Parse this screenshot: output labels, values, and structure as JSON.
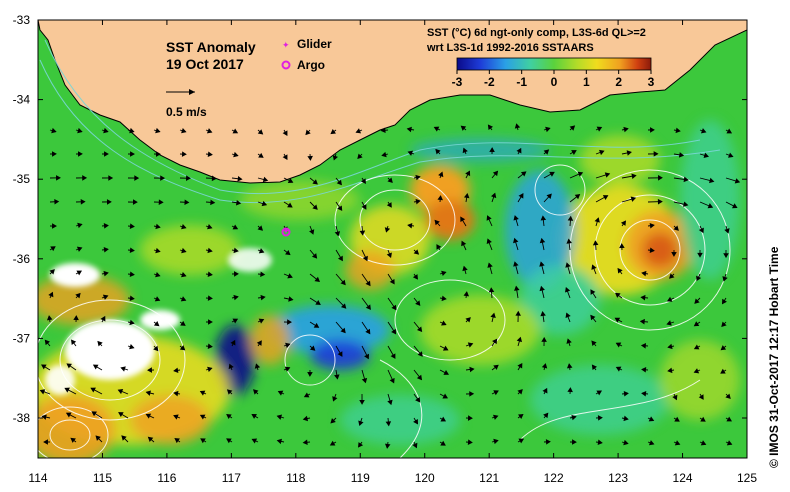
{
  "title": {
    "line1": "SST Anomaly",
    "line2": "19 Oct 2017"
  },
  "legend": {
    "glider_label": "Glider",
    "argo_label": "Argo",
    "glider_color": "#e020e0",
    "argo_color": "#e020e0"
  },
  "velocity_scale": {
    "label": "0.5 m/s"
  },
  "colorbar": {
    "title_line1": "SST (°C) 6d ngt-only comp, L3S-6d QL>=2",
    "title_line2": "wrt L3S-1d 1992-2016 SSTAARS",
    "ticks": [
      "-3",
      "-2",
      "-1",
      "0",
      "1",
      "2",
      "3"
    ],
    "colors": [
      "#0a0a8a",
      "#1e3cd8",
      "#2aa0e6",
      "#40d0a0",
      "#5ad23c",
      "#b4dc28",
      "#f0dc1e",
      "#f0a020",
      "#d04010",
      "#8a1a0a"
    ]
  },
  "axes": {
    "x_ticks": [
      "114",
      "115",
      "116",
      "117",
      "118",
      "119",
      "120",
      "121",
      "122",
      "123",
      "124",
      "125"
    ],
    "y_ticks": [
      "-33",
      "-34",
      "-35",
      "-36",
      "-37",
      "-38"
    ]
  },
  "credit": "© IMOS 31-Oct-2017 12:17 Hobart Time",
  "colors": {
    "land": "#f8c898",
    "ocean_base": "#3cc83c",
    "no_data": "#ffffff",
    "contour": "#ffffff",
    "arrow": "#000000"
  }
}
